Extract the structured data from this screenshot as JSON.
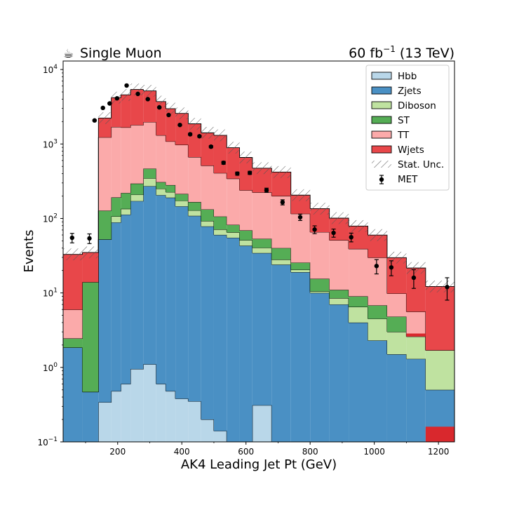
{
  "header": {
    "left_title": "Single Muon",
    "left_icon": "coffee-cup-icon",
    "right_title": "60 fb",
    "right_sup": "−1",
    "right_tail": " (13 TeV)"
  },
  "chart_data": {
    "type": "stacked-histogram",
    "xlabel": "AK4 Leading Jet Pt (GeV)",
    "ylabel": "Events",
    "y_scale": "log",
    "xlim": [
      30,
      1250
    ],
    "ylim": [
      0.1,
      13000
    ],
    "x_ticks": [
      {
        "value": 200,
        "label": "200"
      },
      {
        "value": 400,
        "label": "400"
      },
      {
        "value": 600,
        "label": "600"
      },
      {
        "value": 800,
        "label": "800"
      },
      {
        "value": 1000,
        "label": "1000"
      },
      {
        "value": 1200,
        "label": "1200"
      }
    ],
    "y_ticks": [
      {
        "value": 0.1,
        "base": "10",
        "exp": "−1"
      },
      {
        "value": 1,
        "base": "10",
        "exp": "0"
      },
      {
        "value": 10,
        "base": "10",
        "exp": "1"
      },
      {
        "value": 100,
        "base": "10",
        "exp": "2"
      },
      {
        "value": 1000,
        "base": "10",
        "exp": "3"
      },
      {
        "value": 10000,
        "base": "10",
        "exp": "4"
      }
    ],
    "grid": false,
    "legend_position": "top-right",
    "bin_edges": [
      30,
      90,
      140,
      180,
      210,
      240,
      280,
      320,
      350,
      380,
      420,
      460,
      500,
      540,
      580,
      620,
      680,
      740,
      800,
      860,
      920,
      980,
      1040,
      1100,
      1160,
      1250
    ],
    "series": [
      {
        "name": "Hbb",
        "color": "#b9d7e9",
        "values": [
          0,
          0,
          0.34,
          0.48,
          0.6,
          0.95,
          1.1,
          0.6,
          0.48,
          0.38,
          0.35,
          0.2,
          0.14,
          0.1,
          0.1,
          0.31,
          0,
          0,
          0,
          0,
          0,
          0,
          0,
          0,
          0
        ]
      },
      {
        "name": "Zjets",
        "color": "#4a90c4",
        "values": [
          1.85,
          0.47,
          52,
          88,
          112,
          170,
          270,
          205,
          190,
          145,
          108,
          78,
          60,
          55,
          43,
          34,
          24,
          19,
          10,
          7,
          4,
          2.3,
          1.5,
          1.3,
          0.5
        ]
      },
      {
        "name": "Diboson",
        "color": "#bfe2a0",
        "values": [
          0,
          0,
          0,
          18,
          22,
          38,
          75,
          45,
          35,
          28,
          20,
          14,
          11,
          10,
          8,
          6,
          4,
          1.5,
          0.5,
          1.5,
          2.5,
          2.2,
          1.5,
          1.3,
          1.2
        ]
      },
      {
        "name": "ST",
        "color": "#55ad55",
        "values": [
          0.6,
          13.5,
          75,
          85,
          85,
          85,
          120,
          57,
          55,
          40,
          38,
          40,
          35,
          17,
          18,
          13,
          12,
          5,
          5,
          2.5,
          2.5,
          2.3,
          1.8,
          0,
          0
        ]
      },
      {
        "name": "TT",
        "color": "#fbaaaa",
        "values": [
          3.5,
          0,
          1100,
          1500,
          1450,
          1500,
          1500,
          1000,
          800,
          760,
          500,
          380,
          300,
          260,
          170,
          170,
          160,
          90,
          50,
          40,
          30,
          23,
          5,
          3,
          0
        ]
      },
      {
        "name": "Wjets",
        "color": "#e8474a",
        "values": [
          27,
          21,
          1000,
          2500,
          2900,
          3600,
          3200,
          2400,
          1900,
          1600,
          1200,
          900,
          900,
          550,
          420,
          250,
          220,
          90,
          70,
          50,
          40,
          30,
          20,
          16,
          10.5
        ]
      }
    ],
    "highlight_overlays": [
      {
        "series": "Wjets",
        "color": "#d9282d",
        "bins": [
          {
            "x0": 1100,
            "x1": 1160,
            "lo": 2.6,
            "hi": 2.85
          },
          {
            "x0": 1160,
            "x1": 1250,
            "lo": 0.1,
            "hi": 0.16
          }
        ]
      }
    ],
    "stat_unc_band": {
      "name": "Stat. Unc.",
      "hatch_color": "#555555",
      "rel_width": 0.2
    },
    "data_series": {
      "name": "MET",
      "points": [
        {
          "x": 58,
          "y": 55,
          "err": 8
        },
        {
          "x": 112,
          "y": 54,
          "err": 8
        },
        {
          "x": 128,
          "y": 2070,
          "err": 45
        },
        {
          "x": 154,
          "y": 3050,
          "err": 55
        },
        {
          "x": 175,
          "y": 3500,
          "err": 60
        },
        {
          "x": 198,
          "y": 4100,
          "err": 65
        },
        {
          "x": 228,
          "y": 6100,
          "err": 80
        },
        {
          "x": 263,
          "y": 4700,
          "err": 70
        },
        {
          "x": 294,
          "y": 4000,
          "err": 65
        },
        {
          "x": 330,
          "y": 3100,
          "err": 55
        },
        {
          "x": 359,
          "y": 2450,
          "err": 50
        },
        {
          "x": 394,
          "y": 1800,
          "err": 45
        },
        {
          "x": 426,
          "y": 1350,
          "err": 40
        },
        {
          "x": 455,
          "y": 1270,
          "err": 38
        },
        {
          "x": 491,
          "y": 920,
          "err": 30
        },
        {
          "x": 530,
          "y": 560,
          "err": 25
        },
        {
          "x": 573,
          "y": 400,
          "err": 20
        },
        {
          "x": 612,
          "y": 410,
          "err": 20
        },
        {
          "x": 664,
          "y": 240,
          "err": 15
        },
        {
          "x": 714,
          "y": 165,
          "err": 13
        },
        {
          "x": 769,
          "y": 104,
          "err": 10
        },
        {
          "x": 814,
          "y": 71,
          "err": 8.5
        },
        {
          "x": 873,
          "y": 64,
          "err": 8
        },
        {
          "x": 928,
          "y": 56,
          "err": 7.5
        },
        {
          "x": 1007,
          "y": 23,
          "err": 5
        },
        {
          "x": 1053,
          "y": 22,
          "err": 5
        },
        {
          "x": 1123,
          "y": 16,
          "err": 4.5
        },
        {
          "x": 1227,
          "y": 12,
          "err": 4
        }
      ]
    }
  }
}
